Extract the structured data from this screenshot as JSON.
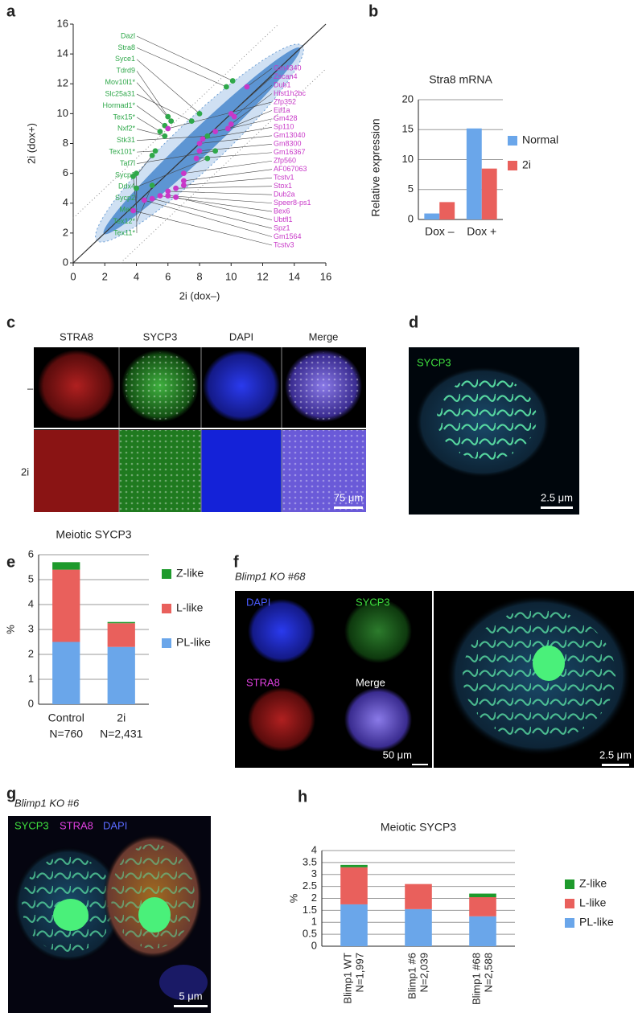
{
  "chart_data": [
    {
      "type": "scatter",
      "panel": "a",
      "xlabel": "2i (dox–)",
      "ylabel": "2i (dox+)",
      "xlim": [
        0,
        16
      ],
      "ylim": [
        0,
        16
      ],
      "xticks": [
        0,
        2,
        4,
        6,
        8,
        10,
        12,
        14,
        16
      ],
      "yticks": [
        0,
        2,
        4,
        6,
        8,
        10,
        12,
        14,
        16
      ],
      "diagonals": [
        {
          "offset": 3,
          "style": "dotted"
        },
        {
          "offset": -3,
          "style": "dotted"
        },
        {
          "offset": 0,
          "style": "solid"
        }
      ],
      "points": [
        {
          "label": "Stra8",
          "x": 9.7,
          "y": 11.8,
          "color": "#2fa84a"
        },
        {
          "label": "Dazl",
          "x": 10.1,
          "y": 12.2,
          "color": "#2fa84a"
        },
        {
          "label": "Mov10l1*",
          "x": 6.2,
          "y": 9.5,
          "color": "#2fa84a"
        },
        {
          "label": "Slc25a31",
          "x": 7.5,
          "y": 9.5,
          "color": "#2fa84a"
        },
        {
          "label": "Hormad1*",
          "x": 5.8,
          "y": 9.2,
          "color": "#2fa84a"
        },
        {
          "label": "Syce1",
          "x": 8.0,
          "y": 10.0,
          "color": "#2fa84a"
        },
        {
          "label": "Tdrd9",
          "x": 6.0,
          "y": 9.8,
          "color": "#2fa84a"
        },
        {
          "label": "Tex15*",
          "x": 5.5,
          "y": 8.8,
          "color": "#2fa84a"
        },
        {
          "label": "Nxf2*",
          "x": 5.8,
          "y": 8.5,
          "color": "#2fa84a"
        },
        {
          "label": "Tex101*",
          "x": 5.2,
          "y": 7.5,
          "color": "#2fa84a"
        },
        {
          "label": "Sycp1",
          "x": 5.0,
          "y": 7.2,
          "color": "#2fa84a"
        },
        {
          "label": "Sycp2",
          "x": 4.0,
          "y": 6.0,
          "color": "#2fa84a"
        },
        {
          "label": "Mei1",
          "x": 3.8,
          "y": 5.8,
          "color": "#2fa84a"
        },
        {
          "label": "Tex12*",
          "x": 5.0,
          "y": 5.2,
          "color": "#2fa84a"
        },
        {
          "label": "Tex11*",
          "x": 4.0,
          "y": 5.0,
          "color": "#2fa84a"
        },
        {
          "label": "Stk31",
          "x": 8.5,
          "y": 8.5,
          "color": "#2fa84a"
        },
        {
          "label": "Taf7l",
          "x": 9.0,
          "y": 7.5,
          "color": "#2fa84a"
        },
        {
          "label": "Ddx4",
          "x": 8.5,
          "y": 7.0,
          "color": "#2fa84a"
        },
        {
          "label": "Gm4340",
          "x": 11.0,
          "y": 11.8,
          "color": "#c838c8"
        },
        {
          "label": "Zfp352",
          "x": 6.0,
          "y": 9.0,
          "color": "#c838c8"
        },
        {
          "label": "Zscan4",
          "x": 10.0,
          "y": 10.0,
          "color": "#c838c8"
        },
        {
          "label": "Dub1",
          "x": 10.2,
          "y": 9.8,
          "color": "#c838c8"
        },
        {
          "label": "Hist1h2bc",
          "x": 10.0,
          "y": 9.3,
          "color": "#c838c8"
        },
        {
          "label": "Eif1a",
          "x": 9.8,
          "y": 9.0,
          "color": "#c838c8"
        },
        {
          "label": "Gm428",
          "x": 9.0,
          "y": 8.8,
          "color": "#c838c8"
        },
        {
          "label": "Sp110",
          "x": 8.2,
          "y": 8.3,
          "color": "#c838c8"
        },
        {
          "label": "Gm13040",
          "x": 8.0,
          "y": 8.0,
          "color": "#c838c8"
        },
        {
          "label": "Gm8300",
          "x": 8.0,
          "y": 7.5,
          "color": "#c838c8"
        },
        {
          "label": "Gm16367",
          "x": 7.8,
          "y": 7.0,
          "color": "#c838c8"
        },
        {
          "label": "Zfp560",
          "x": 7.0,
          "y": 6.0,
          "color": "#c838c8"
        },
        {
          "label": "Stox1",
          "x": 6.5,
          "y": 5.0,
          "color": "#c838c8"
        },
        {
          "label": "Tcstv1",
          "x": 7.0,
          "y": 5.2,
          "color": "#c838c8"
        },
        {
          "label": "AF067063",
          "x": 7.0,
          "y": 5.5,
          "color": "#c838c8"
        },
        {
          "label": "Dub2a",
          "x": 6.0,
          "y": 4.8,
          "color": "#c838c8"
        },
        {
          "label": "Ubtfl1",
          "x": 6.5,
          "y": 4.4,
          "color": "#c838c8"
        },
        {
          "label": "Speer8-ps1",
          "x": 6.0,
          "y": 4.5,
          "color": "#c838c8"
        },
        {
          "label": "Spz1",
          "x": 5.0,
          "y": 4.3,
          "color": "#c838c8"
        },
        {
          "label": "Bex6",
          "x": 5.5,
          "y": 4.5,
          "color": "#c838c8"
        },
        {
          "label": "Gm1564",
          "x": 4.5,
          "y": 4.2,
          "color": "#c838c8"
        },
        {
          "label": "Tcstv3",
          "x": 3.8,
          "y": 3.5,
          "color": "#c838c8"
        }
      ]
    },
    {
      "type": "bar",
      "panel": "b",
      "title": "Stra8 mRNA",
      "ylabel": "Relative expression",
      "categories": [
        "Dox –",
        "Dox +"
      ],
      "series": [
        {
          "name": "Normal",
          "color": "#6aa6ea",
          "values": [
            1.0,
            15.2
          ]
        },
        {
          "name": "2i",
          "color": "#e9605c",
          "values": [
            2.9,
            8.5
          ]
        }
      ],
      "ylim": [
        0,
        20
      ],
      "yticks": [
        0,
        5,
        10,
        15,
        20
      ],
      "grid": true,
      "legend": "right"
    },
    {
      "type": "stacked_bar",
      "panel": "e",
      "title": "Meiotic SYCP3",
      "ylabel": "%",
      "categories": [
        "Control",
        "2i"
      ],
      "n_labels": [
        "N=760",
        "N=2,431"
      ],
      "series": [
        {
          "name": "PL-like",
          "color": "#6aa6ea",
          "values": [
            2.5,
            2.3
          ]
        },
        {
          "name": "L-like",
          "color": "#e9605c",
          "values": [
            2.9,
            0.95
          ]
        },
        {
          "name": "Z-like",
          "color": "#1e9a2c",
          "values": [
            0.3,
            0.05
          ]
        }
      ],
      "ylim": [
        0,
        6
      ],
      "yticks": [
        0,
        1,
        2,
        3,
        4,
        5,
        6
      ],
      "grid": true,
      "legend": "right"
    },
    {
      "type": "stacked_bar",
      "panel": "h",
      "title": "Meiotic SYCP3",
      "ylabel": "%",
      "categories": [
        "Blimp1 WT",
        "Blimp1 #6",
        "Blimp1 #68"
      ],
      "n_labels": [
        "N=1,997",
        "N=2,039",
        "N=2,588"
      ],
      "series": [
        {
          "name": "PL-like",
          "color": "#6aa6ea",
          "values": [
            1.75,
            1.55,
            1.25
          ]
        },
        {
          "name": "L-like",
          "color": "#e9605c",
          "values": [
            1.55,
            1.05,
            0.8
          ]
        },
        {
          "name": "Z-like",
          "color": "#1e9a2c",
          "values": [
            0.1,
            0,
            0.15
          ]
        }
      ],
      "ylim": [
        0,
        4
      ],
      "yticks": [
        0,
        0.5,
        1,
        1.5,
        2,
        2.5,
        3,
        3.5,
        4
      ],
      "grid": true,
      "legend": "right"
    }
  ],
  "images": {
    "c": {
      "panel": "c",
      "columns": [
        "STRA8",
        "SYCP3",
        "DAPI",
        "Merge"
      ],
      "rows": [
        "–",
        "2i"
      ],
      "scale_bar": "75 μm"
    },
    "d": {
      "panel": "d",
      "label": "SYCP3",
      "scale_bar": "2.5 μm"
    },
    "f": {
      "panel": "f",
      "title": "Blimp1 KO #68",
      "channels": [
        "DAPI",
        "SYCP3",
        "STRA8",
        "Merge"
      ],
      "scale_bars": [
        "50 μm",
        "2.5 μm"
      ]
    },
    "g": {
      "panel": "g",
      "title": "Blimp1 KO #6",
      "channels": [
        "SYCP3",
        "STRA8",
        "DAPI"
      ],
      "scale_bar": "5 μm"
    }
  }
}
